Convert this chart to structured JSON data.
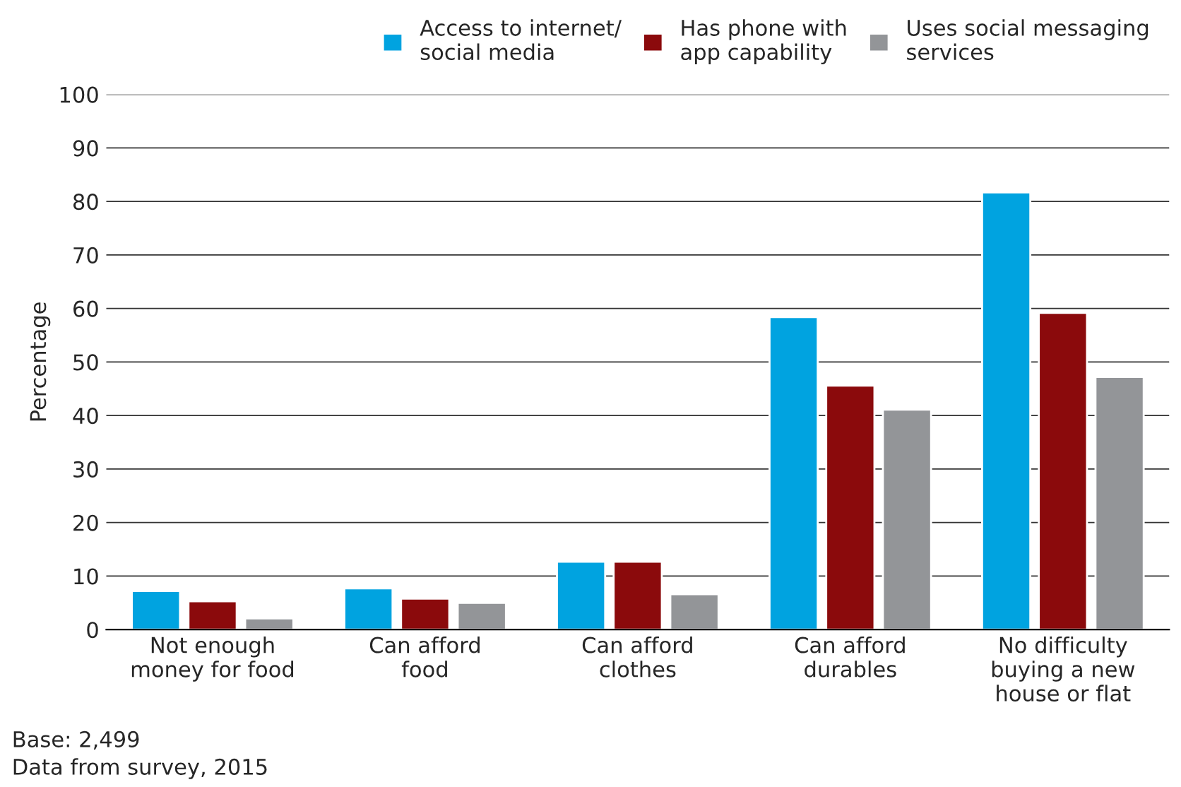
{
  "chart_data": {
    "type": "bar",
    "ylabel": "Percentage",
    "categories": [
      "Not enough\nmoney for food",
      "Can afford\nfood",
      "Can afford\nclothes",
      "Can afford\ndurables",
      "No difficulty\nbuying a new\nhouse or flat"
    ],
    "series": [
      {
        "name": "Access to internet/\nsocial media",
        "color": "#00a3e0",
        "values": [
          7.2,
          7.7,
          12.7,
          58.4,
          81.7
        ]
      },
      {
        "name": "Has phone with\napp capability",
        "color": "#8b0a0c",
        "values": [
          5.3,
          5.8,
          12.7,
          45.6,
          59.2
        ]
      },
      {
        "name": "Uses social messaging\nservices",
        "color": "#939598",
        "values": [
          2.1,
          5.0,
          6.6,
          41.1,
          47.2
        ]
      }
    ],
    "ylim": [
      0,
      100
    ],
    "yticks": [
      0,
      10,
      20,
      30,
      40,
      50,
      60,
      70,
      80,
      90,
      100
    ],
    "grid": "y",
    "legend": "top right",
    "annotations": [
      "Base: 2,499",
      "Data from survey, 2015"
    ]
  }
}
